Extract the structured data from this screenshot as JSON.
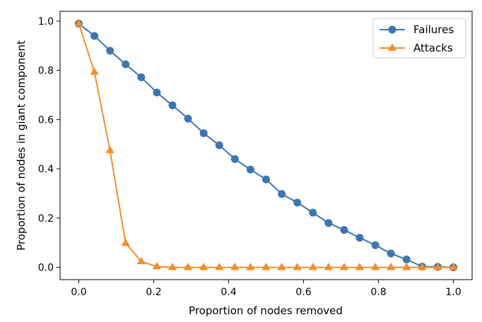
{
  "chart_data": {
    "type": "line",
    "title": "",
    "xlabel": "Proportion of nodes removed",
    "ylabel": "Proportion of nodes in giant component",
    "xlim": [
      -0.05,
      1.05
    ],
    "ylim": [
      -0.05,
      1.04
    ],
    "xticks": [
      "0.0",
      "0.2",
      "0.4",
      "0.6",
      "0.8",
      "1.0"
    ],
    "yticks": [
      "0.0",
      "0.2",
      "0.4",
      "0.6",
      "0.8",
      "1.0"
    ],
    "grid": false,
    "legend_position": "top-right",
    "x": [
      0.0,
      0.0417,
      0.0833,
      0.125,
      0.1667,
      0.2083,
      0.25,
      0.2917,
      0.3333,
      0.375,
      0.4167,
      0.4583,
      0.5,
      0.5417,
      0.5833,
      0.625,
      0.6667,
      0.7083,
      0.75,
      0.7917,
      0.8333,
      0.875,
      0.9167,
      0.9583,
      1.0
    ],
    "series": [
      {
        "name": "Failures",
        "color": "#3c76af",
        "marker": "circle",
        "values": [
          0.99,
          0.94,
          0.88,
          0.825,
          0.772,
          0.71,
          0.658,
          0.604,
          0.545,
          0.496,
          0.44,
          0.397,
          0.357,
          0.298,
          0.263,
          0.222,
          0.18,
          0.152,
          0.12,
          0.09,
          0.056,
          0.032,
          0.003,
          0.002,
          0.0
        ]
      },
      {
        "name": "Attacks",
        "color": "#f28e2b",
        "marker": "triangle",
        "values": [
          0.99,
          0.793,
          0.475,
          0.098,
          0.024,
          0.003,
          0.0,
          0.0,
          0.0,
          0.0,
          0.0,
          0.0,
          0.0,
          0.0,
          0.0,
          0.0,
          0.0,
          0.0,
          0.0,
          0.0,
          0.0,
          0.0,
          0.0,
          0.0,
          0.0
        ]
      }
    ]
  }
}
